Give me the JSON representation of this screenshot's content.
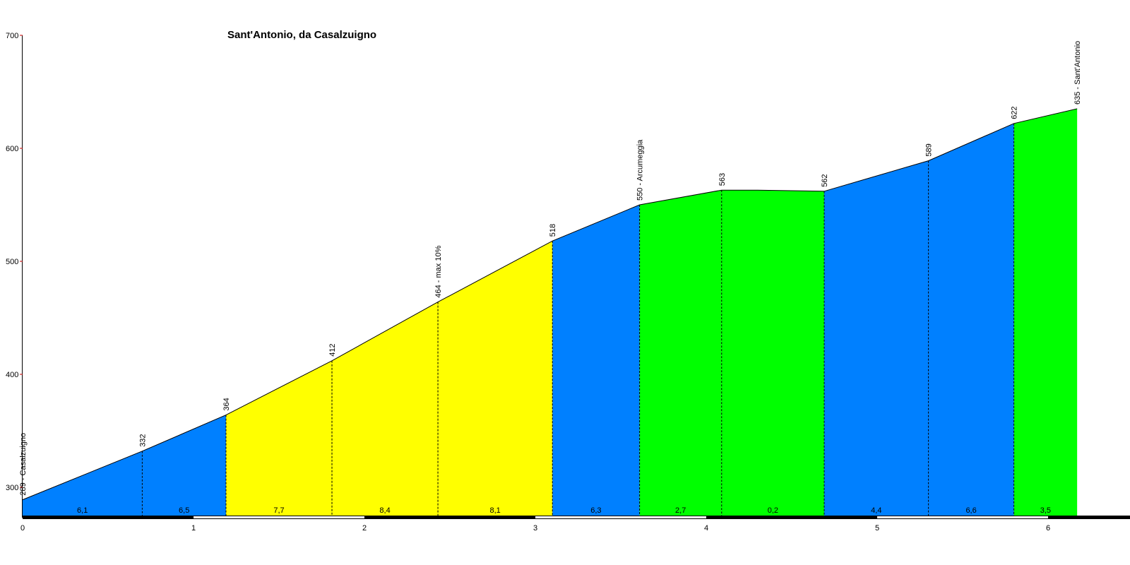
{
  "chart_data": {
    "type": "area",
    "title": "Sant'Antonio, da Casalzuigno",
    "xlabel": "",
    "ylabel": "",
    "xlim": [
      0,
      6.6
    ],
    "ylim": [
      273,
      700
    ],
    "x_ticks": [
      0,
      1,
      2,
      3,
      4,
      5,
      6
    ],
    "y_ticks": [
      300,
      400,
      500,
      600,
      700
    ],
    "profile_points": [
      {
        "x": 0.0,
        "y": 289,
        "label": "289 - Casalzuigno"
      },
      {
        "x": 0.7,
        "y": 332,
        "label": "332"
      },
      {
        "x": 1.19,
        "y": 364,
        "label": "364"
      },
      {
        "x": 1.81,
        "y": 412,
        "label": "412"
      },
      {
        "x": 2.43,
        "y": 464,
        "label": "464 - max 10%"
      },
      {
        "x": 3.1,
        "y": 518,
        "label": "518"
      },
      {
        "x": 3.61,
        "y": 550,
        "label": "550 - Arcumeggia"
      },
      {
        "x": 4.09,
        "y": 563,
        "label": "563"
      },
      {
        "x": 4.3,
        "y": 563,
        "label": ""
      },
      {
        "x": 4.69,
        "y": 562,
        "label": "562"
      },
      {
        "x": 5.3,
        "y": 589,
        "label": "589"
      },
      {
        "x": 5.8,
        "y": 622,
        "label": "622"
      },
      {
        "x": 6.17,
        "y": 635,
        "label": "635 - Sant'Antonio"
      }
    ],
    "segments": [
      {
        "x_start": 0.0,
        "x_end": 0.7,
        "gradient": "6,1",
        "color": "#0080FF"
      },
      {
        "x_start": 0.7,
        "x_end": 1.19,
        "gradient": "6,5",
        "color": "#0080FF"
      },
      {
        "x_start": 1.19,
        "x_end": 1.81,
        "gradient": "7,7",
        "color": "#FFFF00"
      },
      {
        "x_start": 1.81,
        "x_end": 2.43,
        "gradient": "8,4",
        "color": "#FFFF00"
      },
      {
        "x_start": 2.43,
        "x_end": 3.1,
        "gradient": "8,1",
        "color": "#FFFF00"
      },
      {
        "x_start": 3.1,
        "x_end": 3.61,
        "gradient": "6,3",
        "color": "#0080FF"
      },
      {
        "x_start": 3.61,
        "x_end": 4.09,
        "gradient": "2,7",
        "color": "#00FF00"
      },
      {
        "x_start": 4.09,
        "x_end": 4.69,
        "gradient": "0,2",
        "color": "#00FF00"
      },
      {
        "x_start": 4.69,
        "x_end": 5.3,
        "gradient": "4,4",
        "color": "#0080FF"
      },
      {
        "x_start": 5.3,
        "x_end": 5.8,
        "gradient": "6,6",
        "color": "#0080FF"
      },
      {
        "x_start": 5.8,
        "x_end": 6.17,
        "gradient": "3,5",
        "color": "#00FF00"
      }
    ],
    "divider_positions": [
      0.7,
      1.19,
      1.81,
      2.43,
      3.1,
      3.61,
      4.09,
      4.69,
      5.3,
      5.8
    ],
    "grid": false,
    "axis_tick_color": "#CC0000"
  }
}
